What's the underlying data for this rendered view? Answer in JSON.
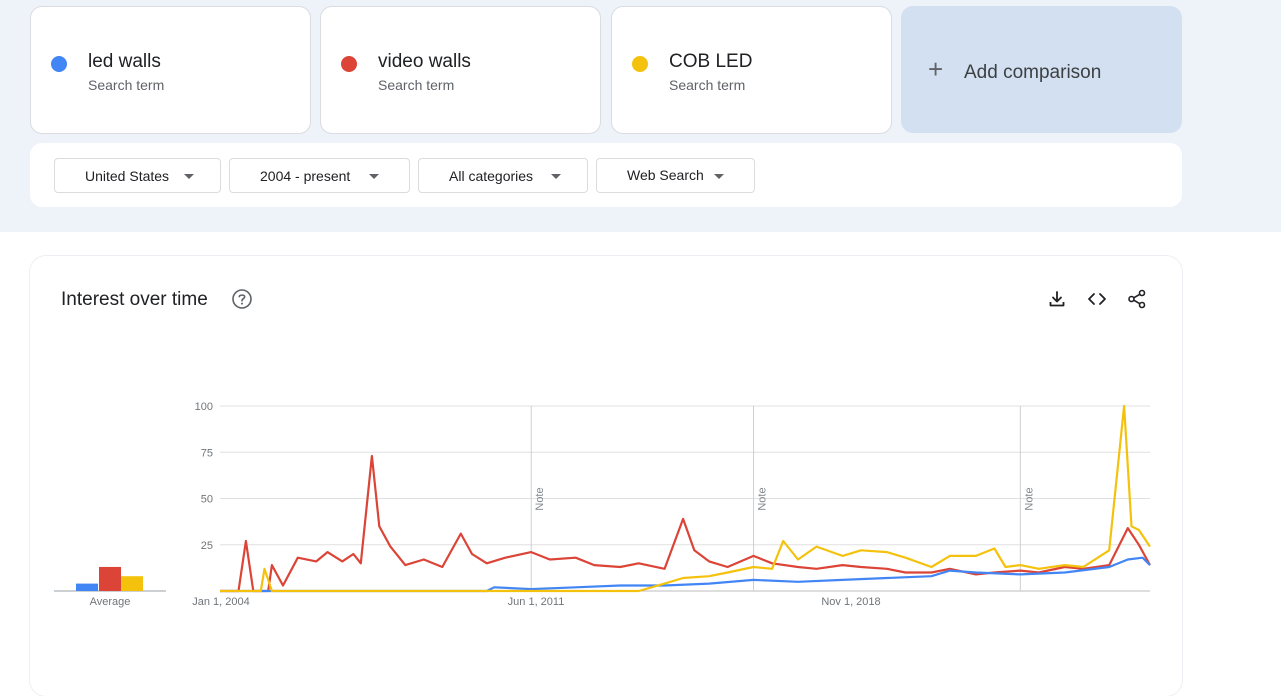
{
  "terms": [
    {
      "name": "led walls",
      "sub": "Search term",
      "color": "#4285f4"
    },
    {
      "name": "video walls",
      "sub": "Search term",
      "color": "#db4437"
    },
    {
      "name": "COB LED",
      "sub": "Search term",
      "color": "#f4c20d"
    }
  ],
  "add_comparison": {
    "label": "Add comparison",
    "icon": "plus-icon"
  },
  "filters": {
    "region": "United States",
    "time": "2004 - present",
    "category": "All categories",
    "search_type": "Web Search"
  },
  "chart_section": {
    "title": "Interest over time",
    "help_icon": "help-circle-icon",
    "tools": [
      "download-icon",
      "embed-code-icon",
      "share-icon"
    ]
  },
  "chart_data": {
    "type": "line",
    "title": "",
    "xlabel": "",
    "ylabel": "",
    "ylim": [
      0,
      100
    ],
    "yticks": [
      "100",
      "75",
      "50",
      "25"
    ],
    "xtick_labels": [
      "Jan 1, 2004",
      "Jun 1, 2011",
      "Nov 1, 2018"
    ],
    "x_range": [
      "2004-01",
      "2024-12"
    ],
    "notes": [
      {
        "x": "2011-01",
        "label": "Note"
      },
      {
        "x": "2016-01",
        "label": "Note"
      },
      {
        "x": "2022-01",
        "label": "Note"
      }
    ],
    "average": {
      "label": "Average",
      "values": [
        4,
        13,
        8
      ]
    },
    "series": [
      {
        "name": "led walls",
        "color": "#4285f4",
        "points": [
          [
            "2004-01",
            0
          ],
          [
            "2010-01",
            0
          ],
          [
            "2010-03",
            2
          ],
          [
            "2011-01",
            1
          ],
          [
            "2012-01",
            2
          ],
          [
            "2013-01",
            3
          ],
          [
            "2014-01",
            3
          ],
          [
            "2015-01",
            4
          ],
          [
            "2016-01",
            6
          ],
          [
            "2017-01",
            5
          ],
          [
            "2018-01",
            6
          ],
          [
            "2019-01",
            7
          ],
          [
            "2020-01",
            8
          ],
          [
            "2020-06",
            11
          ],
          [
            "2021-01",
            10
          ],
          [
            "2022-01",
            9
          ],
          [
            "2023-01",
            10
          ],
          [
            "2024-01",
            13
          ],
          [
            "2024-06",
            17
          ],
          [
            "2024-10",
            18
          ],
          [
            "2024-12",
            14
          ]
        ]
      },
      {
        "name": "video walls",
        "color": "#db4437",
        "points": [
          [
            "2004-01",
            0
          ],
          [
            "2004-06",
            0
          ],
          [
            "2004-08",
            27
          ],
          [
            "2004-10",
            0
          ],
          [
            "2005-02",
            0
          ],
          [
            "2005-03",
            14
          ],
          [
            "2005-06",
            3
          ],
          [
            "2005-10",
            18
          ],
          [
            "2006-03",
            16
          ],
          [
            "2006-06",
            21
          ],
          [
            "2006-10",
            16
          ],
          [
            "2007-01",
            20
          ],
          [
            "2007-03",
            15
          ],
          [
            "2007-06",
            73
          ],
          [
            "2007-08",
            35
          ],
          [
            "2007-11",
            24
          ],
          [
            "2008-03",
            14
          ],
          [
            "2008-08",
            17
          ],
          [
            "2009-01",
            13
          ],
          [
            "2009-06",
            31
          ],
          [
            "2009-09",
            20
          ],
          [
            "2010-01",
            15
          ],
          [
            "2010-06",
            18
          ],
          [
            "2011-01",
            21
          ],
          [
            "2011-06",
            17
          ],
          [
            "2012-01",
            18
          ],
          [
            "2012-06",
            14
          ],
          [
            "2013-01",
            13
          ],
          [
            "2013-06",
            15
          ],
          [
            "2014-01",
            12
          ],
          [
            "2014-06",
            39
          ],
          [
            "2014-09",
            22
          ],
          [
            "2015-01",
            16
          ],
          [
            "2015-06",
            13
          ],
          [
            "2016-01",
            19
          ],
          [
            "2016-06",
            15
          ],
          [
            "2017-01",
            13
          ],
          [
            "2017-06",
            12
          ],
          [
            "2018-01",
            14
          ],
          [
            "2018-06",
            13
          ],
          [
            "2019-01",
            12
          ],
          [
            "2019-06",
            10
          ],
          [
            "2020-01",
            10
          ],
          [
            "2020-06",
            12
          ],
          [
            "2021-01",
            9
          ],
          [
            "2021-06",
            10
          ],
          [
            "2022-01",
            11
          ],
          [
            "2022-06",
            10
          ],
          [
            "2023-01",
            13
          ],
          [
            "2023-06",
            12
          ],
          [
            "2024-01",
            14
          ],
          [
            "2024-06",
            34
          ],
          [
            "2024-09",
            25
          ],
          [
            "2024-12",
            14
          ]
        ]
      },
      {
        "name": "COB LED",
        "color": "#f4c20d",
        "points": [
          [
            "2004-01",
            0
          ],
          [
            "2004-12",
            0
          ],
          [
            "2005-01",
            12
          ],
          [
            "2005-03",
            0
          ],
          [
            "2013-06",
            0
          ],
          [
            "2014-01",
            4
          ],
          [
            "2014-06",
            7
          ],
          [
            "2015-01",
            8
          ],
          [
            "2015-06",
            10
          ],
          [
            "2016-01",
            13
          ],
          [
            "2016-06",
            12
          ],
          [
            "2016-09",
            27
          ],
          [
            "2017-01",
            17
          ],
          [
            "2017-06",
            24
          ],
          [
            "2018-01",
            19
          ],
          [
            "2018-06",
            22
          ],
          [
            "2019-01",
            21
          ],
          [
            "2019-06",
            18
          ],
          [
            "2020-01",
            13
          ],
          [
            "2020-06",
            19
          ],
          [
            "2021-01",
            19
          ],
          [
            "2021-06",
            23
          ],
          [
            "2021-09",
            13
          ],
          [
            "2022-01",
            14
          ],
          [
            "2022-06",
            12
          ],
          [
            "2023-01",
            14
          ],
          [
            "2023-06",
            13
          ],
          [
            "2024-01",
            22
          ],
          [
            "2024-05",
            100
          ],
          [
            "2024-07",
            35
          ],
          [
            "2024-09",
            33
          ],
          [
            "2024-12",
            24
          ]
        ]
      }
    ]
  }
}
